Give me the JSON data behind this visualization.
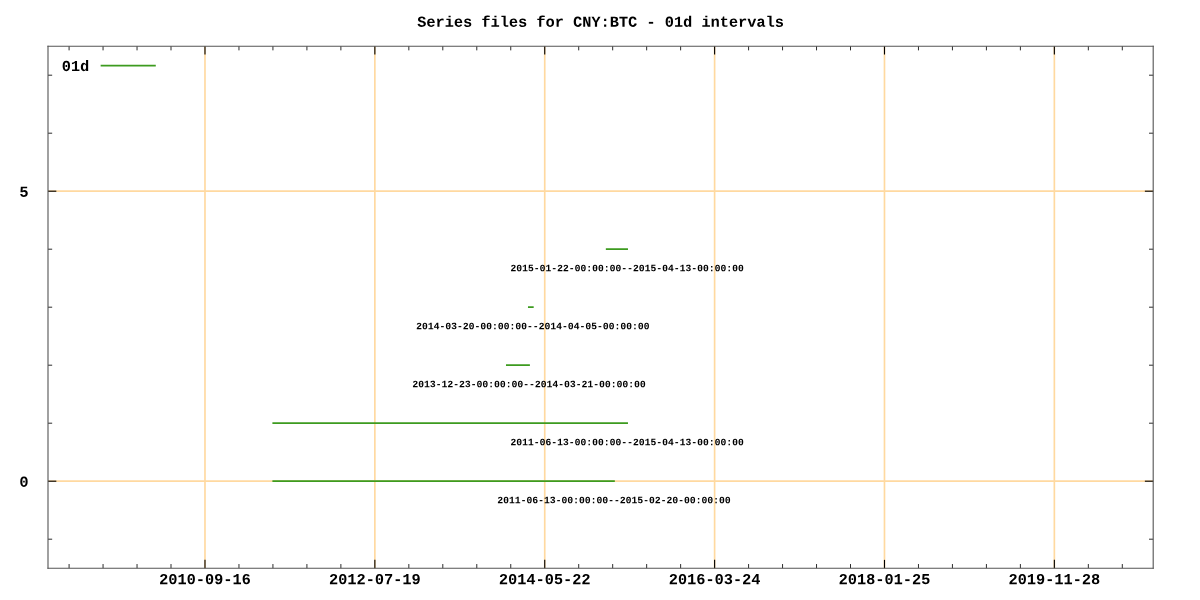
{
  "chart_data": {
    "type": "line",
    "title": "Series files for CNY:BTC - 01d intervals",
    "series": [
      {
        "name": "01d",
        "color": "#3d9b1f",
        "x": [
          "2011-06-13",
          "2015-02-20",
          null,
          "2011-06-13",
          "2015-04-13",
          null,
          "2013-12-23",
          "2014-03-21",
          null,
          "2014-03-20",
          "2014-04-05",
          null,
          "2015-01-22",
          "2015-04-13"
        ],
        "values": [
          0,
          0,
          null,
          1,
          1,
          null,
          2,
          2,
          null,
          3,
          3,
          null,
          4,
          4
        ]
      }
    ],
    "annotations": [
      {
        "text": "2011-06-13-00:00:00--2015-02-20-00:00:00",
        "x": "2015-02-20",
        "y": 0
      },
      {
        "text": "2011-06-13-00:00:00--2015-04-13-00:00:00",
        "x": "2015-04-13",
        "y": 1
      },
      {
        "text": "2013-12-23-00:00:00--2014-03-21-00:00:00",
        "x": "2014-03-21",
        "y": 2
      },
      {
        "text": "2014-03-20-00:00:00--2014-04-05-00:00:00",
        "x": "2014-04-05",
        "y": 3
      },
      {
        "text": "2015-01-22-00:00:00--2015-04-13-00:00:00",
        "x": "2015-04-13",
        "y": 4
      }
    ],
    "xlim": [
      "2009-01-03",
      "2020-12-23"
    ],
    "xticks": [
      "2010-09-16",
      "2012-07-19",
      "2014-05-22",
      "2016-03-24",
      "2018-01-25",
      "2019-11-28"
    ],
    "ylim": [
      -1.5,
      7.5
    ],
    "yticks": [
      0,
      5
    ],
    "grid": true,
    "legend": "top left",
    "marker": "none",
    "line_style": "solid"
  }
}
